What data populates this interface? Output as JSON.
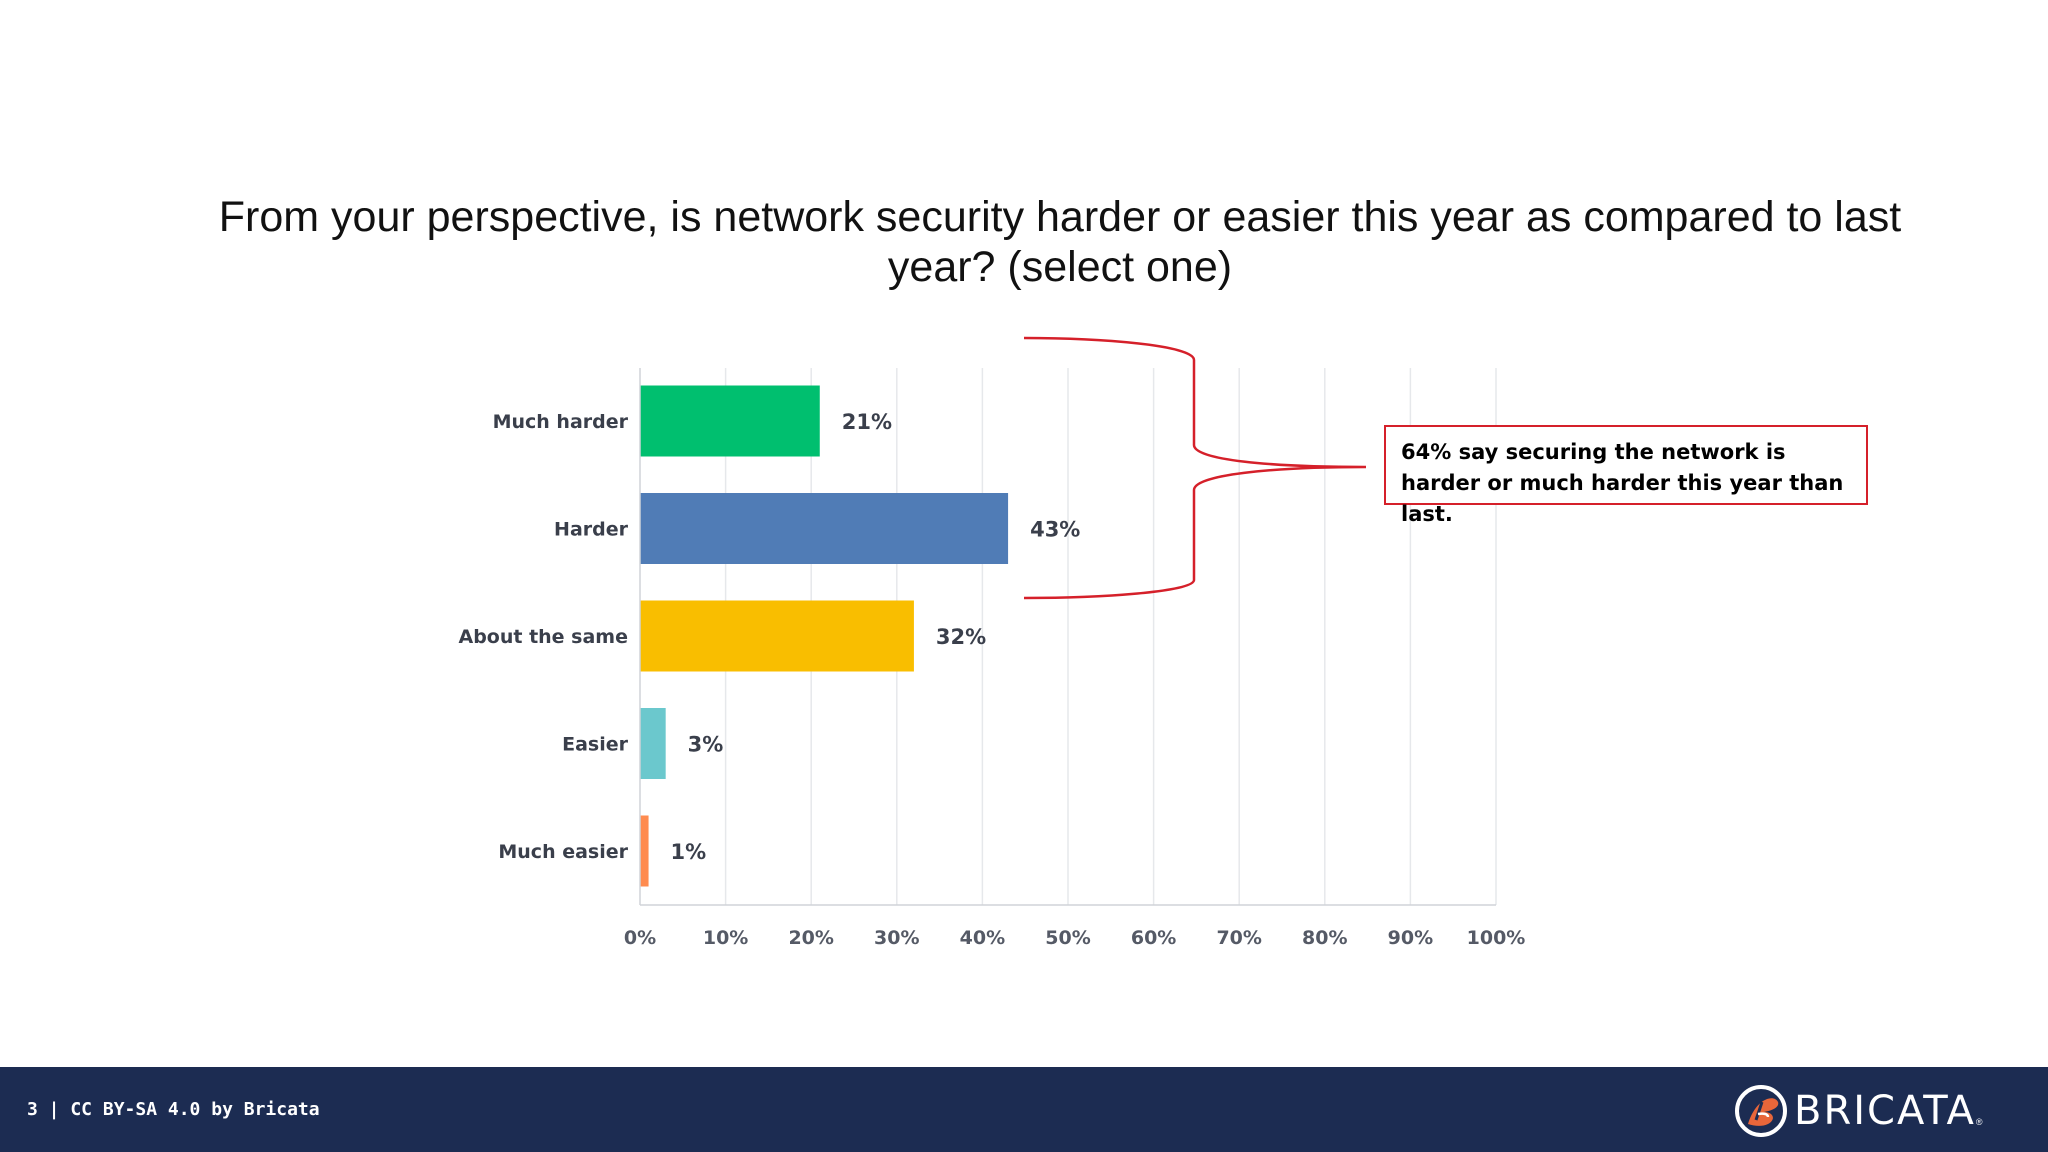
{
  "slide": {
    "footer_text": "3 | CC BY-SA 4.0 by Bricata",
    "logo_text": "BRICATA",
    "logo_mark": "®",
    "callout_text": "64% say securing the network is harder or much harder this year than last."
  },
  "colors": {
    "footer_bg": "#1c2c52",
    "annotation": "#d5202a"
  },
  "icons": {
    "logo": "bricata-b-logo-icon"
  },
  "chart_data": {
    "type": "bar",
    "orientation": "horizontal",
    "title": "From your perspective, is network security harder or easier this year as compared to last year? (select one)",
    "categories": [
      "Much harder",
      "Harder",
      "About the same",
      "Easier",
      "Much easier"
    ],
    "values": [
      21,
      43,
      32,
      3,
      1
    ],
    "value_labels": [
      "21%",
      "43%",
      "32%",
      "3%",
      "1%"
    ],
    "colors": [
      "#00bf6f",
      "#507cb6",
      "#f9be00",
      "#6bc8cd",
      "#ff8b4f"
    ],
    "xlim": [
      0,
      100
    ],
    "xticks": [
      0,
      10,
      20,
      30,
      40,
      50,
      60,
      70,
      80,
      90,
      100
    ],
    "xtick_labels": [
      "0%",
      "10%",
      "20%",
      "30%",
      "40%",
      "50%",
      "60%",
      "70%",
      "80%",
      "90%",
      "100%"
    ],
    "grid": true
  }
}
